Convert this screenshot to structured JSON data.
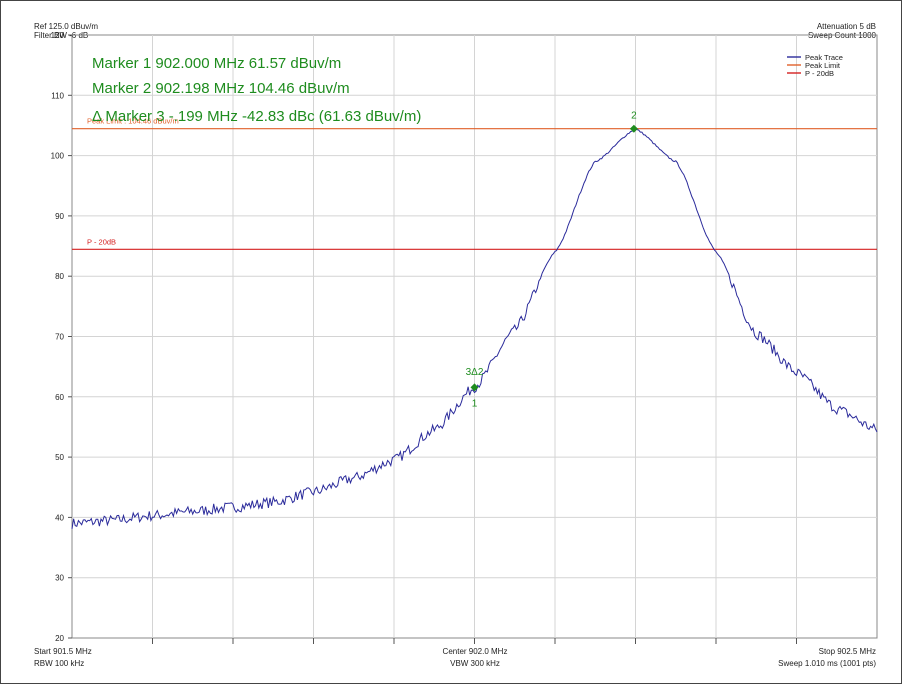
{
  "header": {
    "ref": "Ref 125.0 dBuv/m",
    "filter_bw": "Filter BW -6 dB",
    "attenuation": "Attenuation 5 dB",
    "sweep_count": "Sweep Count 1000"
  },
  "footer": {
    "start": "Start 901.5 MHz",
    "rbw": "RBW 100 kHz",
    "center": "Center 902.0 MHz",
    "vbw": "VBW 300 kHz",
    "stop": "Stop 902.5 MHz",
    "sweep": "Sweep 1.010 ms (1001 pts)"
  },
  "markers_text": {
    "m1": "Marker 1 902.000 MHz 61.57 dBuv/m",
    "m2": "Marker 2 902.198 MHz 104.46 dBuv/m",
    "m3": "Δ Marker 3 -.199 MHz -42.83 dBc (61.63 dBuv/m)"
  },
  "legend": [
    {
      "label": "Peak Trace",
      "color": "#2b2b9b"
    },
    {
      "label": "Peak Limit",
      "color": "#e0602a"
    },
    {
      "label": "P - 20dB",
      "color": "#d42020"
    }
  ],
  "limit_labels": {
    "peak_limit": "Peak Limit : 104.46 dBuv/m",
    "p20": "P - 20dB"
  },
  "chart_data": {
    "type": "line",
    "xlim": [
      901.5,
      902.5
    ],
    "ylim": [
      20,
      120
    ],
    "yticks": [
      20,
      30,
      40,
      50,
      60,
      70,
      80,
      90,
      100,
      110,
      120
    ],
    "x_divisions": 10,
    "grid": true,
    "legend_position": "top-right",
    "series": [
      {
        "name": "Peak Trace",
        "color": "#2b2b9b",
        "x": [
          901.5,
          901.55,
          901.6,
          901.65,
          901.7,
          901.75,
          901.8,
          901.85,
          901.9,
          901.95,
          902.0,
          902.05,
          902.1,
          902.15,
          902.2,
          902.25,
          902.3,
          902.35,
          902.4,
          902.45,
          902.5
        ],
        "y": [
          39,
          39.5,
          40.3,
          41,
          41.7,
          42.5,
          44.2,
          46.5,
          49.5,
          54.5,
          61.6,
          71,
          84,
          99,
          104.4,
          99,
          84,
          70.5,
          64,
          58,
          54.5
        ]
      }
    ],
    "lines": [
      {
        "name": "Peak Limit",
        "y": 104.46,
        "color": "#e0602a"
      },
      {
        "name": "P - 20dB",
        "y": 84.46,
        "color": "#d42020"
      }
    ],
    "markers": [
      {
        "label": "1",
        "x": 902.0,
        "y": 61.57
      },
      {
        "label": "2",
        "x": 902.198,
        "y": 104.46
      },
      {
        "label": "3Δ2",
        "x": 902.0,
        "y": 61.63
      }
    ]
  }
}
